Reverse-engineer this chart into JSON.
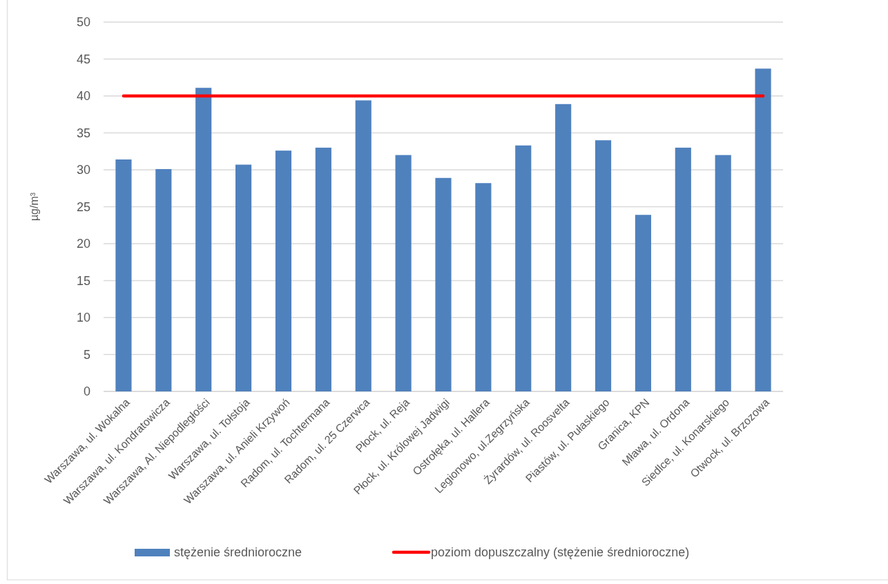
{
  "chart_data": {
    "type": "bar",
    "categories": [
      "Warszawa, ul. Wokalna",
      "Warszawa, ul. Kondratowicza",
      "Warszawa, Al. Niepodległości",
      "Warszawa, ul. Tołstoja",
      "Warszawa, ul. Anieli Krzywoń",
      "Radom, ul. Tochtermana",
      "Radom, ul. 25 Czerwca",
      "Płock, ul. Reja",
      "Płock, ul. Królowej Jadwigi",
      "Ostrołęka, ul. Hallera",
      "Legionowo, ul.Zegrzyńska",
      "Żyrardów, ul. Roosvelta",
      "Piastów, ul. Pułaskiego",
      "Granica, KPN",
      "Mława, ul. Ordona",
      "Siedlce, ul. Konarskiego",
      "Otwock, ul. Brzozowa"
    ],
    "series": [
      {
        "name": "stężenie średnioroczne",
        "color": "#4f81bd",
        "values": [
          31.4,
          30.1,
          41.1,
          30.7,
          32.6,
          33.0,
          39.4,
          32.0,
          28.9,
          28.2,
          33.3,
          38.9,
          34.0,
          23.9,
          33.0,
          32.0,
          43.7
        ]
      },
      {
        "name": "poziom dopuszczalny (stężenie średnioroczne)",
        "type": "line",
        "color": "#ff0000",
        "values": [
          40,
          40,
          40,
          40,
          40,
          40,
          40,
          40,
          40,
          40,
          40,
          40,
          40,
          40,
          40,
          40,
          40
        ]
      }
    ],
    "ylabel": "µg/m³",
    "ylim": [
      0,
      50
    ],
    "yticks": [
      0,
      5,
      10,
      15,
      20,
      25,
      30,
      35,
      40,
      45,
      50
    ],
    "grid": "y",
    "legend": "bottom"
  }
}
